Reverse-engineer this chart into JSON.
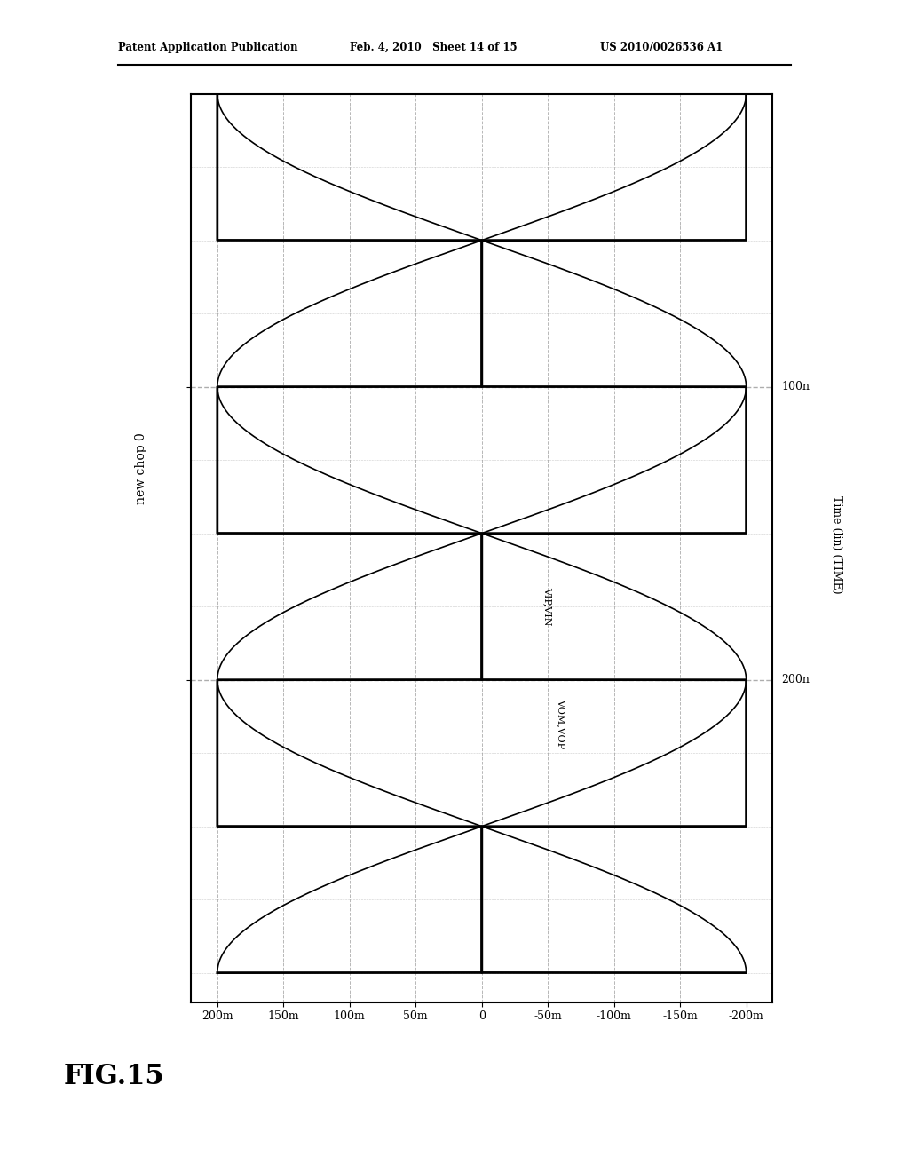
{
  "header_left": "Patent Application Publication",
  "header_mid": "Feb. 4, 2010   Sheet 14 of 15",
  "header_right": "US 2010/0026536 A1",
  "fig_label": "FIG.15",
  "time_axis_label": "Time (lin) (TIME)",
  "left_label": "new chop 0",
  "signal_label_1": "VIP,VIN",
  "signal_label_2": "VOM,VOP",
  "amp_tick_labels": [
    "200m",
    "150m",
    "100m",
    "50m",
    "0",
    "-50m",
    "-100m",
    "-150m",
    "-200m"
  ],
  "amp_tick_values": [
    0.2,
    0.15,
    0.1,
    0.05,
    0.0,
    -0.05,
    -0.1,
    -0.15,
    -0.2
  ],
  "time_tick_labels": [
    "100n",
    "200n"
  ],
  "time_tick_values": [
    100,
    200
  ],
  "amp_lim": [
    -0.22,
    0.22
  ],
  "time_lim": [
    0,
    310
  ],
  "total_time": 300,
  "amplitude": 0.2,
  "sample_period": 50,
  "sine_period": 200,
  "bg_color": "#ffffff",
  "line_color": "#000000",
  "grid_color": "#999999"
}
